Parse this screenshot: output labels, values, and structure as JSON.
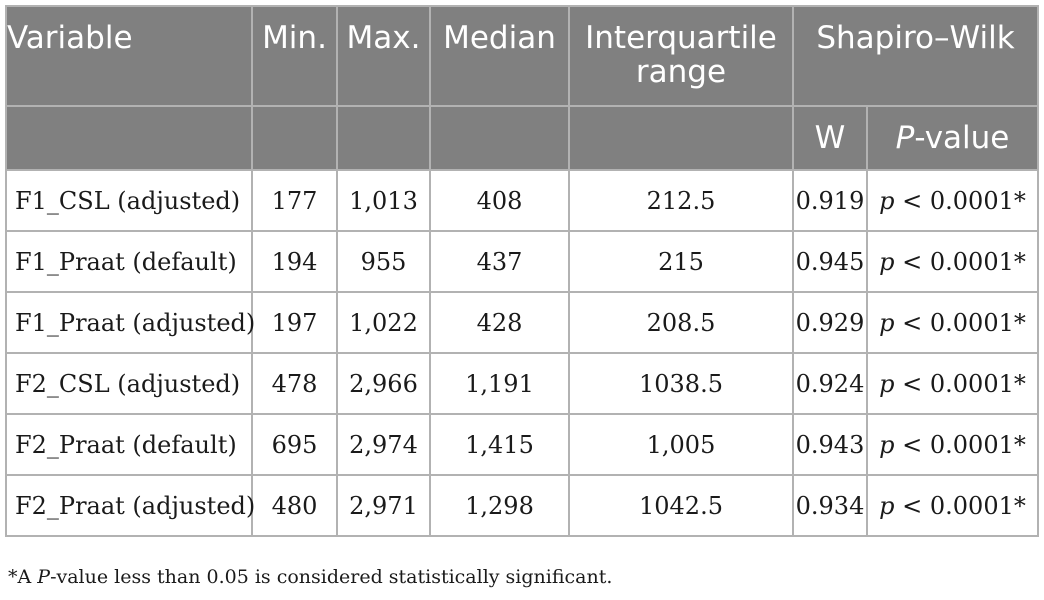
{
  "headers": {
    "variable": "Variable",
    "min": "Min.",
    "max": "Max.",
    "median": "Median",
    "iqr": "Interquartile range",
    "shapiro_wilk": "Shapiro–Wilk",
    "w": "W",
    "p_value_letter": "P",
    "p_value_rest": "-value"
  },
  "rows": [
    {
      "variable": "F1_CSL (adjusted)",
      "min": "177",
      "max": "1,013",
      "median": "408",
      "iqr": "212.5",
      "w": "0.919",
      "p_symbol": "p",
      "p_rest": " < 0.0001*"
    },
    {
      "variable": "F1_Praat (default)",
      "min": "194",
      "max": "955",
      "median": "437",
      "iqr": "215",
      "w": "0.945",
      "p_symbol": "p",
      "p_rest": " < 0.0001*"
    },
    {
      "variable": "F1_Praat (adjusted)",
      "min": "197",
      "max": "1,022",
      "median": "428",
      "iqr": "208.5",
      "w": "0.929",
      "p_symbol": "p",
      "p_rest": " < 0.0001*"
    },
    {
      "variable": "F2_CSL (adjusted)",
      "min": "478",
      "max": "2,966",
      "median": "1,191",
      "iqr": "1038.5",
      "w": "0.924",
      "p_symbol": "p",
      "p_rest": " < 0.0001*"
    },
    {
      "variable": "F2_Praat (default)",
      "min": "695",
      "max": "2,974",
      "median": "1,415",
      "iqr": "1,005",
      "w": "0.943",
      "p_symbol": "p",
      "p_rest": " < 0.0001*"
    },
    {
      "variable": "F2_Praat (adjusted)",
      "min": "480",
      "max": "2,971",
      "median": "1,298",
      "iqr": "1042.5",
      "w": "0.934",
      "p_symbol": "p",
      "p_rest": " < 0.0001*"
    }
  ],
  "footnote": {
    "prefix": "*A ",
    "italic": "P",
    "suffix": "-value less than 0.05 is considered statistically significant."
  },
  "colors": {
    "header_bg": "#808080",
    "header_text": "#ffffff",
    "border": "#b2b2b2",
    "body_text": "#1a1a1a"
  }
}
